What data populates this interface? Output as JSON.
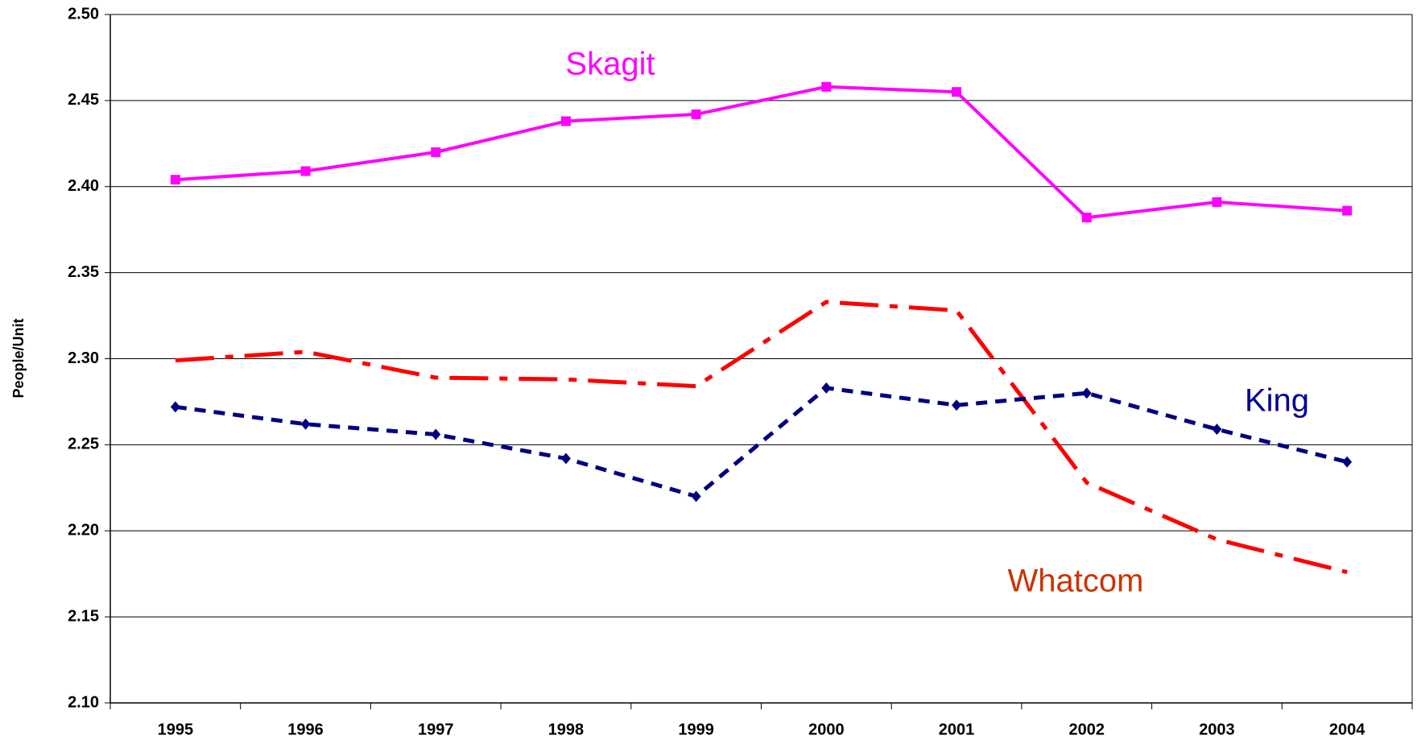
{
  "chart_data": {
    "type": "line",
    "y_axis_label": "People/Unit",
    "categories": [
      "1995",
      "1996",
      "1997",
      "1998",
      "1999",
      "2000",
      "2001",
      "2002",
      "2003",
      "2004"
    ],
    "series": [
      {
        "name": "Skagit",
        "color": "#ff00ff",
        "values": [
          2.404,
          2.409,
          2.42,
          2.438,
          2.442,
          2.458,
          2.455,
          2.382,
          2.391,
          2.386
        ]
      },
      {
        "name": "Whatcom",
        "color": "#ff0000",
        "values": [
          2.299,
          2.304,
          2.289,
          2.288,
          2.284,
          2.333,
          2.328,
          2.228,
          2.195,
          2.176
        ]
      },
      {
        "name": "King",
        "color": "#000080",
        "values": [
          2.272,
          2.262,
          2.256,
          2.242,
          2.22,
          2.283,
          2.273,
          2.28,
          2.259,
          2.24
        ]
      }
    ],
    "ylim": [
      2.1,
      2.5
    ],
    "yticks": [
      {
        "value": 2.1,
        "label": "2.10"
      },
      {
        "value": 2.15,
        "label": "2.15"
      },
      {
        "value": 2.2,
        "label": "2.20"
      },
      {
        "value": 2.25,
        "label": "2.25"
      },
      {
        "value": 2.3,
        "label": "2.30"
      },
      {
        "value": 2.35,
        "label": "2.35"
      },
      {
        "value": 2.4,
        "label": "2.40"
      },
      {
        "value": 2.45,
        "label": "2.45"
      },
      {
        "value": 2.5,
        "label": "2.50"
      }
    ],
    "grid": true
  }
}
